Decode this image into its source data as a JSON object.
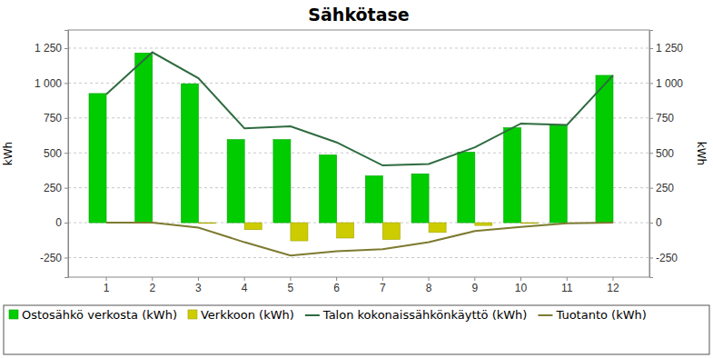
{
  "chart_data": {
    "type": "bar",
    "title": "Sähkötase",
    "categories": [
      "1",
      "2",
      "3",
      "4",
      "5",
      "6",
      "7",
      "8",
      "9",
      "10",
      "11",
      "12"
    ],
    "series": [
      {
        "name": "Ostosähkö verkosta (kWh)",
        "type": "bar",
        "color": "#00cc00",
        "values": [
          925,
          1215,
          995,
          595,
          595,
          485,
          335,
          350,
          505,
          680,
          695,
          1055
        ]
      },
      {
        "name": "Verkkoon (kWh)",
        "type": "bar",
        "color": "#cccc00",
        "values": [
          0,
          0,
          -5,
          -50,
          -130,
          -110,
          -120,
          -70,
          -20,
          -5,
          0,
          0
        ]
      },
      {
        "name": "Talon kokonaissähkönkäyttö (kWh)",
        "type": "line",
        "color": "#2e6b3f",
        "values": [
          920,
          1220,
          1035,
          675,
          690,
          575,
          410,
          420,
          540,
          710,
          700,
          1055
        ]
      },
      {
        "name": "Tuotanto (kWh)",
        "type": "line",
        "color": "#7d7a30",
        "values": [
          0,
          0,
          -35,
          -140,
          -235,
          -205,
          -190,
          -140,
          -60,
          -30,
          -5,
          0
        ]
      }
    ],
    "y_label": "kWh",
    "y2_label": "kWh",
    "ylim": [
      -390,
      1380
    ],
    "yticks": [
      -250,
      0,
      250,
      500,
      750,
      {
        "value": 1000,
        "label": "1 000"
      },
      {
        "value": 1250,
        "label": "1 250"
      }
    ],
    "y2lim": [
      -390,
      1380
    ],
    "y2ticks": [
      -250,
      0,
      250,
      500,
      750,
      {
        "value": 1000,
        "label": "1 000"
      },
      {
        "value": 1250,
        "label": "1 250"
      }
    ],
    "grid": true,
    "legend": "bottom"
  }
}
